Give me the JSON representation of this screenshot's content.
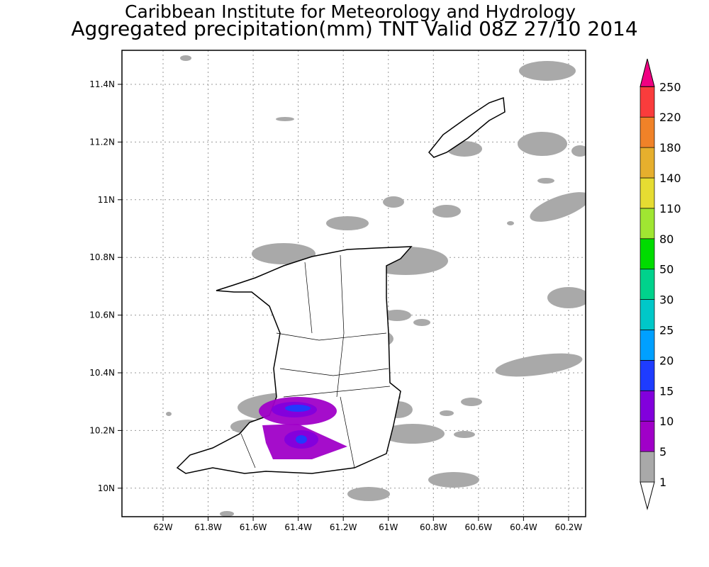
{
  "title": {
    "line1": "Caribbean Institute for Meteorology and Hydrology",
    "line2": "Aggregated precipitation(mm) TNT Valid 08Z 27/10 2014"
  },
  "axes": {
    "lat_labels": [
      "11.4N",
      "11.2N",
      "11N",
      "10.8N",
      "10.6N",
      "10.4N",
      "10.2N",
      "10N"
    ],
    "lon_labels": [
      "62W",
      "61.8W",
      "61.6W",
      "61.4W",
      "61.2W",
      "61W",
      "60.8W",
      "60.6W",
      "60.4W",
      "60.2W"
    ]
  },
  "colorbar": {
    "labels": [
      "1",
      "5",
      "10",
      "15",
      "20",
      "25",
      "30",
      "50",
      "80",
      "110",
      "140",
      "180",
      "220",
      "250"
    ],
    "colors": [
      "#a9a9a9",
      "#a000c8",
      "#8200dc",
      "#1e3cff",
      "#00a0ff",
      "#00c8c8",
      "#00d28c",
      "#00dc00",
      "#a0e632",
      "#e6dc32",
      "#e6af2d",
      "#f08228",
      "#fa3c3c",
      "#f00082"
    ],
    "below_color": "#ffffff"
  }
}
